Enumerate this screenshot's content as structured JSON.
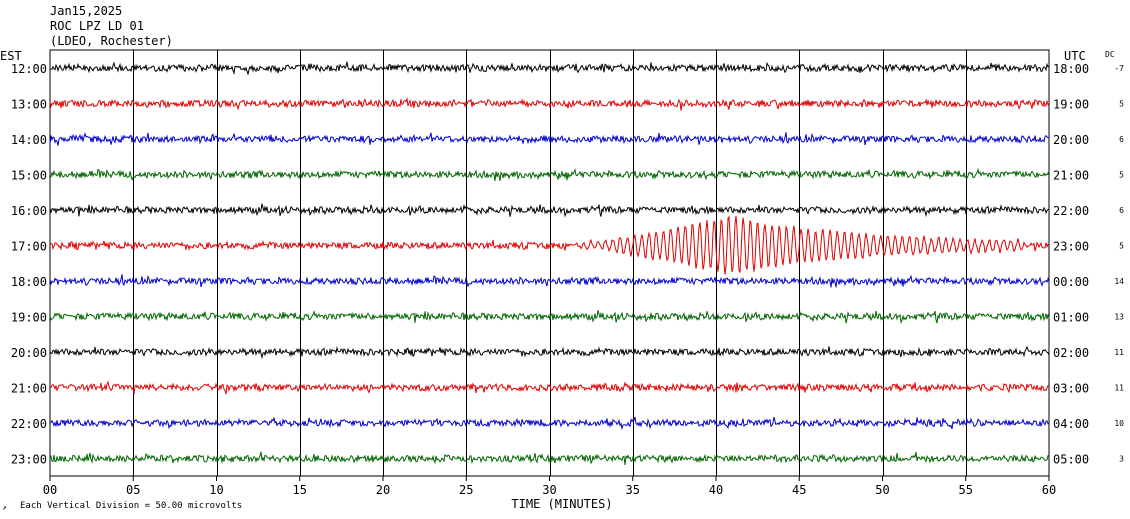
{
  "header": {
    "date": "Jan15,2025",
    "station": "ROC LPZ LD 01",
    "network": "(LDEO, Rochester)"
  },
  "chart_data": {
    "type": "line",
    "title": "",
    "left_axis_label": "EST",
    "right_axis_label": "UTC",
    "dc_label": "DC",
    "xlabel": "TIME (MINUTES)",
    "xlim": [
      0,
      60
    ],
    "x_ticks": [
      "00",
      "05",
      "10",
      "15",
      "20",
      "25",
      "30",
      "35",
      "40",
      "45",
      "50",
      "55",
      "60"
    ],
    "scale_note": "Each Vertical Division =   50.00 microvolts",
    "colors": [
      "#000000",
      "#e00000",
      "#0000cc",
      "#006400"
    ],
    "traces": [
      {
        "est": "12:00",
        "utc": "18:00",
        "dc": "-7",
        "color": "#000000"
      },
      {
        "est": "13:00",
        "utc": "19:00",
        "dc": "5",
        "color": "#e00000"
      },
      {
        "est": "14:00",
        "utc": "20:00",
        "dc": "6",
        "color": "#0000cc"
      },
      {
        "est": "15:00",
        "utc": "21:00",
        "dc": "5",
        "color": "#006400"
      },
      {
        "est": "16:00",
        "utc": "22:00",
        "dc": "6",
        "color": "#000000"
      },
      {
        "est": "17:00",
        "utc": "23:00",
        "dc": "5",
        "color": "#e00000",
        "event": {
          "start_min": 32.5,
          "peak_min": 40.5,
          "end_min": 58
        }
      },
      {
        "est": "18:00",
        "utc": "00:00",
        "dc": "14",
        "color": "#0000cc"
      },
      {
        "est": "19:00",
        "utc": "01:00",
        "dc": "13",
        "color": "#006400"
      },
      {
        "est": "20:00",
        "utc": "02:00",
        "dc": "11",
        "color": "#000000"
      },
      {
        "est": "21:00",
        "utc": "03:00",
        "dc": "11",
        "color": "#e00000"
      },
      {
        "est": "22:00",
        "utc": "04:00",
        "dc": "10",
        "color": "#0000cc"
      },
      {
        "est": "23:00",
        "utc": "05:00",
        "dc": "3",
        "color": "#006400"
      }
    ]
  }
}
